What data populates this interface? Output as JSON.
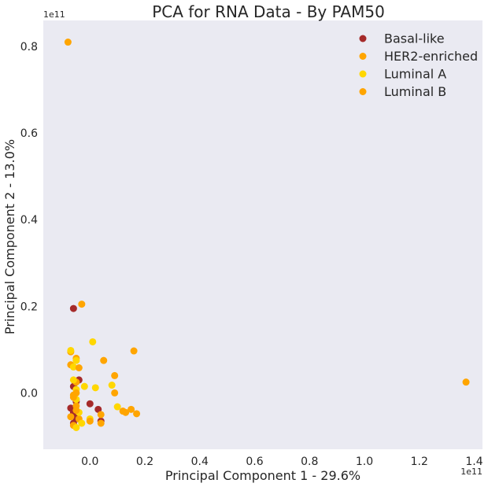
{
  "chart_data": {
    "type": "scatter",
    "title": "PCA for RNA Data - By PAM50",
    "xlabel": "Principal Component 1 - 29.6%",
    "ylabel": "Principal Component 2 - 13.0%",
    "x_offset_label": "1e11",
    "y_offset_label": "1e11",
    "xlim": [
      -0.17,
      1.43
    ],
    "ylim": [
      -0.13,
      0.86
    ],
    "xticks": [
      0.0,
      0.2,
      0.4,
      0.6,
      0.8,
      1.0,
      1.2,
      1.4
    ],
    "xtick_labels": [
      "0.0",
      "0.2",
      "0.4",
      "0.6",
      "0.8",
      "1.0",
      "1.2",
      "1.4"
    ],
    "yticks": [
      0.0,
      0.2,
      0.4,
      0.6,
      0.8
    ],
    "ytick_labels": [
      "0.0",
      "0.2",
      "0.4",
      "0.6",
      "0.8"
    ],
    "grid": false,
    "legend_position": "top-right",
    "background": "#eaeaf2",
    "series": [
      {
        "name": "Basal-like",
        "color": "#a52a2a",
        "points": [
          [
            -0.06,
            0.195
          ],
          [
            -0.04,
            0.03
          ],
          [
            -0.06,
            0.015
          ],
          [
            0.0,
            -0.025
          ],
          [
            0.03,
            -0.038
          ],
          [
            0.04,
            -0.065
          ],
          [
            -0.07,
            -0.035
          ],
          [
            -0.05,
            -0.055
          ],
          [
            -0.06,
            -0.07
          ],
          [
            -0.05,
            -0.02
          ],
          [
            -0.06,
            -0.045
          ],
          [
            -0.05,
            -0.06
          ]
        ]
      },
      {
        "name": "HER2-enriched",
        "color": "#ffa500",
        "points": [
          [
            -0.08,
            0.81
          ],
          [
            -0.03,
            0.205
          ],
          [
            -0.07,
            0.095
          ],
          [
            -0.07,
            0.065
          ],
          [
            -0.05,
            0.08
          ],
          [
            -0.06,
            -0.005
          ],
          [
            -0.05,
            -0.03
          ],
          [
            -0.04,
            -0.06
          ],
          [
            -0.06,
            -0.075
          ],
          [
            0.04,
            -0.07
          ],
          [
            0.13,
            -0.045
          ],
          [
            -0.05,
            0.025
          ]
        ]
      },
      {
        "name": "Luminal A",
        "color": "#ffd700",
        "points": [
          [
            -0.07,
            0.098
          ],
          [
            -0.06,
            0.06
          ],
          [
            -0.05,
            0.075
          ],
          [
            -0.06,
            0.03
          ],
          [
            -0.02,
            0.015
          ],
          [
            0.01,
            0.118
          ],
          [
            0.02,
            0.012
          ],
          [
            0.08,
            0.018
          ],
          [
            0.1,
            -0.032
          ],
          [
            0.0,
            -0.06
          ],
          [
            -0.05,
            0.008
          ],
          [
            -0.04,
            -0.045
          ],
          [
            -0.05,
            -0.08
          ],
          [
            -0.03,
            -0.07
          ],
          [
            -0.05,
            -0.015
          ]
        ]
      },
      {
        "name": "Luminal B",
        "color": "#ffa500",
        "points": [
          [
            1.37,
            0.025
          ],
          [
            0.05,
            0.075
          ],
          [
            0.16,
            0.097
          ],
          [
            0.09,
            0.04
          ],
          [
            0.09,
            0.0
          ],
          [
            0.04,
            -0.05
          ],
          [
            0.15,
            -0.038
          ],
          [
            0.17,
            -0.048
          ],
          [
            -0.04,
            0.058
          ],
          [
            -0.06,
            -0.01
          ],
          [
            -0.05,
            -0.04
          ],
          [
            0.0,
            -0.065
          ],
          [
            -0.07,
            -0.055
          ],
          [
            -0.05,
            0.0
          ],
          [
            0.12,
            -0.042
          ]
        ]
      }
    ]
  }
}
